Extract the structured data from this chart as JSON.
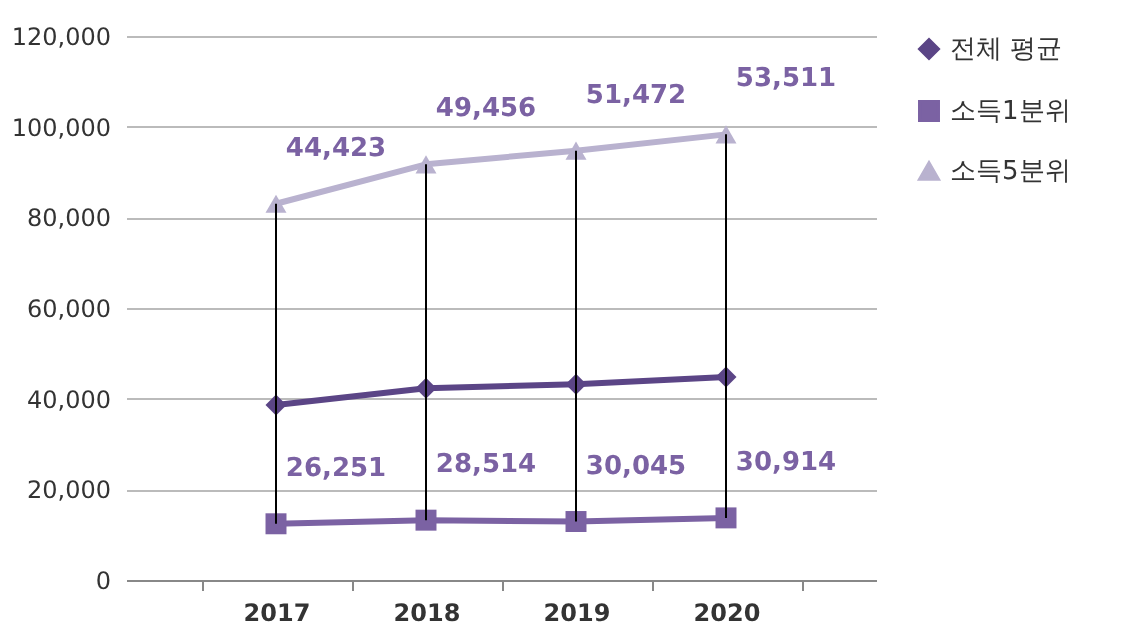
{
  "chart_data": {
    "type": "line",
    "categories": [
      "2017",
      "2018",
      "2019",
      "2020"
    ],
    "series": [
      {
        "name": "전체 평균",
        "color": "#5b4586",
        "marker": "diamond",
        "values": [
          38600,
          42300,
          43200,
          44800
        ],
        "errors": [
          [
            12400,
            83000
          ],
          [
            13200,
            91700
          ],
          [
            12900,
            94700
          ],
          [
            13700,
            98300
          ]
        ]
      },
      {
        "name": "소득1분위",
        "color": "#7b62a3",
        "marker": "square",
        "values": [
          12400,
          13200,
          12900,
          13700
        ]
      },
      {
        "name": "소득5분위",
        "color": "#b9b2cf",
        "marker": "triangle",
        "values": [
          83000,
          91700,
          94700,
          98300
        ]
      }
    ],
    "annotations": [
      {
        "text": "44,423",
        "x": "2017",
        "y": 83000
      },
      {
        "text": "49,456",
        "x": "2018",
        "y": 91700
      },
      {
        "text": "51,472",
        "x": "2019",
        "y": 94700
      },
      {
        "text": "53,511",
        "x": "2020",
        "y": 98300
      },
      {
        "text": "26,251",
        "x": "2017",
        "y": 12400
      },
      {
        "text": "28,514",
        "x": "2018",
        "y": 13200
      },
      {
        "text": "30,045",
        "x": "2019",
        "y": 12900
      },
      {
        "text": "30,914",
        "x": "2020",
        "y": 13700
      }
    ],
    "ylim": [
      0,
      120000
    ],
    "yticks": [
      {
        "value": 0,
        "label": "0"
      },
      {
        "value": 20000,
        "label": "20,000"
      },
      {
        "value": 40000,
        "label": "40,000"
      },
      {
        "value": 60000,
        "label": "60,000"
      },
      {
        "value": 80000,
        "label": "80,000"
      },
      {
        "value": 100000,
        "label": "100,000"
      },
      {
        "value": 120000,
        "label": "120,000"
      }
    ],
    "grid": "y",
    "legend": "right",
    "line_style": "solid"
  }
}
